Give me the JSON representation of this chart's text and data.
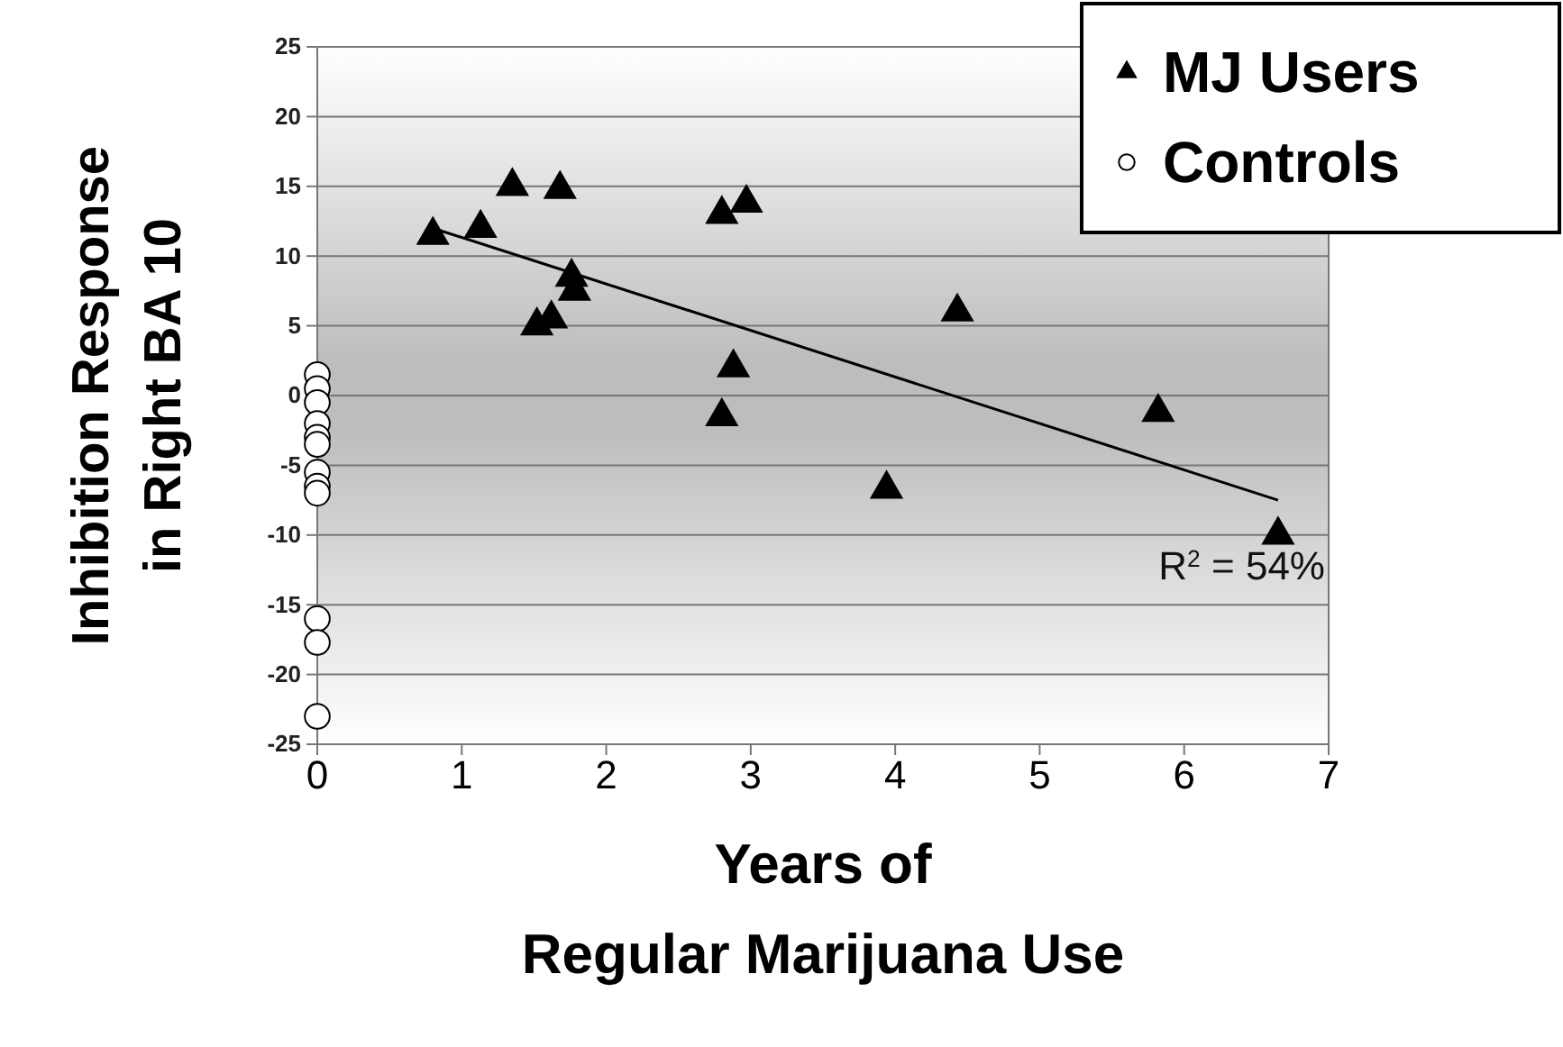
{
  "chart_data": {
    "type": "scatter",
    "xlabel": "Years of\nRegular Marijuana Use",
    "ylabel": "Inhibition Response\nin Right BA 10",
    "xlim": [
      0,
      7
    ],
    "xticks": [
      0,
      1,
      2,
      3,
      4,
      5,
      6,
      7
    ],
    "ylim": [
      -25,
      25
    ],
    "yticks": [
      -25,
      -20,
      -15,
      -10,
      -5,
      0,
      5,
      10,
      15,
      20,
      25
    ],
    "grid": "y",
    "legend": "top right",
    "series": [
      {
        "name": "MJ Users",
        "type": "scatter",
        "marker": "triangle",
        "color": "#000000",
        "x": [
          0.8,
          1.13,
          1.35,
          1.68,
          1.52,
          1.62,
          1.76,
          1.78,
          2.8,
          2.97,
          2.88,
          2.8,
          3.94,
          4.43,
          5.82,
          6.65
        ],
        "values": [
          11.5,
          12,
          15,
          14.8,
          5,
          5.5,
          8.5,
          7.5,
          13,
          13.8,
          2,
          -1.5,
          -6.7,
          6,
          -1.2,
          -10
        ]
      },
      {
        "name": "Controls",
        "type": "scatter",
        "marker": "circle",
        "color": "#ffffff",
        "x": [
          0,
          0,
          0,
          0,
          0,
          0,
          0,
          0,
          0,
          0,
          0,
          0
        ],
        "values": [
          1.5,
          0.5,
          -0.5,
          -2,
          -3,
          -3.5,
          -5.5,
          -6.5,
          -7,
          -16,
          -17.7,
          -23
        ]
      },
      {
        "type": "line",
        "line_style": "solid",
        "marker": "none",
        "color": "#000000",
        "x": [
          0.8,
          6.65
        ],
        "values": [
          12,
          -7.5
        ]
      }
    ],
    "annotations": [
      "R$^{2}$ = 54%"
    ]
  }
}
